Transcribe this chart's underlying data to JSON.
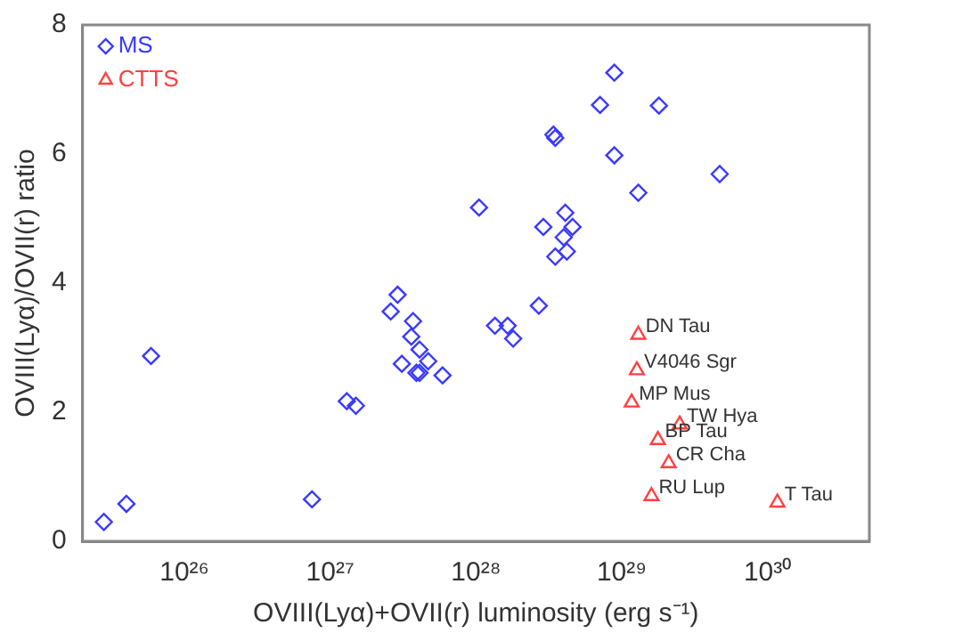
{
  "chart_data": {
    "type": "scatter",
    "xlabel": "OVIII(Lyα)+OVII(r) luminosity (erg s⁻¹)",
    "ylabel": "OVIII(Lyα)/OVII(r) ratio",
    "log": "x",
    "xlim": [
      2e+25,
      5e+30
    ],
    "ylim": [
      0,
      8
    ],
    "xticks": [
      {
        "value": 1e+26,
        "label": "10²⁶"
      },
      {
        "value": 1e+27,
        "label": "10²⁷"
      },
      {
        "value": 1e+28,
        "label": "10²⁸"
      },
      {
        "value": 1e+29,
        "label": "10²⁹"
      },
      {
        "value": 1e+30,
        "label": "10³⁰"
      }
    ],
    "yticks": [
      0,
      2,
      4,
      6,
      8
    ],
    "grid": false,
    "legend": "top left",
    "series": [
      {
        "name": "MS",
        "color": "#3a3aff",
        "marker": "diamond",
        "x": [
          2.8e+25,
          4e+25,
          5.9e+25,
          7.5e+26,
          1.3e+27,
          1.5e+27,
          2.6e+27,
          2.9e+27,
          3.7e+27,
          3.6e+27,
          4.1e+27,
          3.1e+27,
          3.9e+27,
          4.1e+27,
          4.7e+27,
          5.9e+27,
          1.05e+28,
          8.9e+28,
          7.1e+28,
          1.8e+29,
          3.4e+28,
          3.5e+28,
          8.9e+28,
          4.7e+29,
          1.3e+29,
          4.1e+28,
          2.9e+28,
          4.6e+28,
          4e+28,
          4.1e+28,
          4.2e+28,
          3.5e+28,
          2.7e+28,
          1.35e+28,
          1.65e+28,
          1.8e+28
        ],
        "values": [
          0.3,
          0.58,
          2.87,
          0.65,
          2.17,
          2.1,
          3.56,
          3.82,
          3.41,
          3.17,
          2.97,
          2.75,
          2.61,
          2.61,
          2.79,
          2.57,
          5.17,
          7.26,
          6.76,
          6.75,
          6.3,
          6.25,
          5.98,
          5.69,
          5.4,
          5.09,
          4.87,
          4.87,
          4.71,
          null,
          4.49,
          4.41,
          3.65,
          3.34,
          3.34,
          3.14
        ]
      },
      {
        "name": "CTTS",
        "color": "#ff4040",
        "marker": "triangle",
        "x": [
          1.3e+29,
          1.27e+29,
          1.17e+29,
          2.5e+29,
          1.77e+29,
          2.1e+29,
          1.6e+29,
          1.17e+30
        ],
        "values": [
          3.2,
          2.65,
          2.15,
          1.81,
          1.57,
          1.21,
          0.7,
          0.6
        ]
      }
    ],
    "annotations": [
      {
        "text": "DN Tau",
        "x": 1.3e+29,
        "y": 3.2
      },
      {
        "text": "V4046 Sgr",
        "x": 1.27e+29,
        "y": 2.65
      },
      {
        "text": "MP Mus",
        "x": 1.17e+29,
        "y": 2.15
      },
      {
        "text": "TW Hya",
        "x": 2.5e+29,
        "y": 1.81
      },
      {
        "text": "BP Tau",
        "x": 1.77e+29,
        "y": 1.57
      },
      {
        "text": "CR Cha",
        "x": 2.1e+29,
        "y": 1.21
      },
      {
        "text": "RU Lup",
        "x": 1.6e+29,
        "y": 0.7
      },
      {
        "text": "T Tau",
        "x": 1.17e+30,
        "y": 0.6
      }
    ]
  }
}
